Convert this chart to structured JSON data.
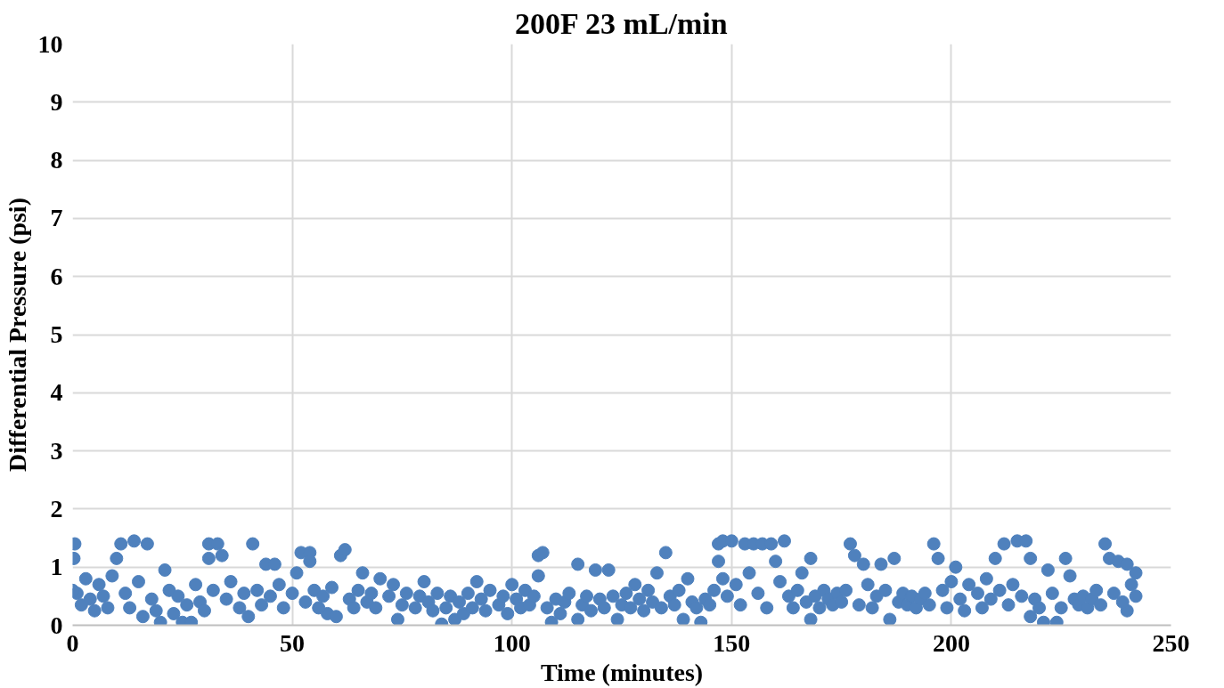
{
  "chart_data": {
    "type": "scatter",
    "title": "200F 23 mL/min",
    "xlabel": "Time (minutes)",
    "ylabel": "Differential Pressure (psi)",
    "xlim": [
      0,
      250
    ],
    "xticks": [
      0,
      50,
      100,
      150,
      200,
      250
    ],
    "ylim": [
      0,
      10
    ],
    "yticks": [
      0,
      1,
      2,
      3,
      4,
      5,
      6,
      7,
      8,
      9,
      10
    ],
    "grid": true,
    "marker": "circle",
    "series": [
      {
        "color": "#4f81bd",
        "x": [
          0.5,
          0.3,
          1,
          10,
          11,
          14,
          17,
          16,
          20,
          21,
          25,
          27,
          31,
          31,
          33,
          34,
          41,
          44,
          46,
          52,
          54,
          54,
          58,
          61,
          62,
          60,
          66,
          70,
          74,
          80,
          84,
          87,
          92,
          100,
          106,
          107,
          106,
          109,
          115,
          115,
          119,
          122,
          124,
          128,
          133,
          135,
          139,
          140,
          143,
          147,
          147,
          148,
          150,
          153,
          155,
          157,
          159,
          162,
          160,
          166,
          168,
          168,
          177,
          178,
          180,
          184,
          186,
          187,
          196,
          197,
          201,
          210,
          212,
          215,
          217,
          218,
          218,
          221,
          222,
          224,
          226,
          227,
          235,
          236,
          238,
          240,
          242,
          242,
          240,
          0,
          2,
          3,
          4,
          5,
          6,
          7,
          8,
          9,
          12,
          13,
          15,
          18,
          19,
          22,
          23,
          24,
          26,
          28,
          29,
          30,
          32,
          35,
          36,
          38,
          39,
          40,
          42,
          43,
          45,
          47,
          48,
          50,
          51,
          53,
          55,
          56,
          57,
          59,
          63,
          64,
          65,
          67,
          68,
          69,
          72,
          73,
          75,
          76,
          78,
          79,
          81,
          82,
          83,
          85,
          86,
          88,
          89,
          90,
          91,
          93,
          94,
          95,
          97,
          98,
          99,
          101,
          102,
          103,
          104,
          105,
          108,
          110,
          111,
          112,
          113,
          116,
          117,
          118,
          120,
          121,
          123,
          125,
          126,
          127,
          129,
          130,
          131,
          132,
          134,
          136,
          137,
          138,
          141,
          142,
          144,
          145,
          146,
          148,
          149,
          151,
          152,
          154,
          156,
          158,
          161,
          163,
          164,
          165,
          167,
          169,
          170,
          171,
          172,
          173,
          174,
          175,
          176,
          179,
          181,
          182,
          183,
          185,
          188,
          189,
          190,
          191,
          192,
          193,
          194,
          195,
          198,
          199,
          200,
          202,
          203,
          204,
          206,
          207,
          208,
          209,
          211,
          213,
          214,
          216,
          219,
          220,
          223,
          225,
          228,
          229,
          230,
          231,
          232,
          233,
          234,
          237,
          239,
          241
        ],
        "values": [
          1.4,
          1.15,
          0.55,
          1.15,
          1.4,
          1.45,
          1.4,
          0.15,
          0.05,
          0.95,
          0.05,
          0.05,
          1.4,
          1.15,
          1.4,
          1.2,
          1.4,
          1.05,
          1.05,
          1.25,
          1.25,
          1.1,
          0.2,
          1.2,
          1.3,
          0.15,
          0.9,
          0.8,
          0.1,
          0.75,
          0.02,
          0.1,
          0.75,
          0.7,
          1.2,
          1.25,
          0.85,
          0.05,
          1.05,
          0.1,
          0.95,
          0.95,
          0.1,
          0.7,
          0.9,
          1.25,
          0.1,
          0.8,
          0.05,
          1.4,
          1.1,
          1.45,
          1.45,
          1.4,
          1.4,
          1.4,
          1.4,
          1.45,
          1.1,
          0.9,
          1.15,
          0.1,
          1.4,
          1.2,
          1.05,
          1.05,
          0.1,
          1.15,
          1.4,
          1.15,
          1.0,
          1.15,
          1.4,
          1.45,
          1.45,
          1.15,
          0.15,
          0.05,
          0.95,
          0.05,
          1.15,
          0.85,
          1.4,
          1.15,
          1.1,
          1.05,
          0.9,
          0.5,
          0.25,
          0.6,
          0.35,
          0.8,
          0.45,
          0.25,
          0.7,
          0.5,
          0.3,
          0.85,
          0.55,
          0.3,
          0.75,
          0.45,
          0.25,
          0.6,
          0.2,
          0.5,
          0.35,
          0.7,
          0.4,
          0.25,
          0.6,
          0.45,
          0.75,
          0.3,
          0.55,
          0.15,
          0.6,
          0.35,
          0.5,
          0.7,
          0.3,
          0.55,
          0.9,
          0.4,
          0.6,
          0.3,
          0.5,
          0.65,
          0.45,
          0.3,
          0.6,
          0.4,
          0.55,
          0.3,
          0.5,
          0.7,
          0.35,
          0.55,
          0.3,
          0.5,
          0.4,
          0.25,
          0.55,
          0.3,
          0.5,
          0.4,
          0.2,
          0.55,
          0.3,
          0.45,
          0.25,
          0.6,
          0.35,
          0.5,
          0.2,
          0.45,
          0.3,
          0.6,
          0.35,
          0.5,
          0.3,
          0.45,
          0.2,
          0.4,
          0.55,
          0.35,
          0.5,
          0.25,
          0.45,
          0.3,
          0.5,
          0.35,
          0.55,
          0.3,
          0.45,
          0.25,
          0.6,
          0.4,
          0.3,
          0.5,
          0.35,
          0.6,
          0.4,
          0.3,
          0.45,
          0.35,
          0.6,
          0.8,
          0.5,
          0.7,
          0.35,
          0.9,
          0.55,
          0.3,
          0.75,
          0.5,
          0.3,
          0.6,
          0.4,
          0.5,
          0.3,
          0.6,
          0.45,
          0.35,
          0.55,
          0.4,
          0.6,
          0.35,
          0.7,
          0.3,
          0.5,
          0.6,
          0.4,
          0.55,
          0.35,
          0.5,
          0.3,
          0.45,
          0.55,
          0.35,
          0.6,
          0.3,
          0.75,
          0.45,
          0.25,
          0.7,
          0.55,
          0.3,
          0.8,
          0.45,
          0.6,
          0.35,
          0.7,
          0.5,
          0.45,
          0.3,
          0.55,
          0.3,
          0.45,
          0.35,
          0.5,
          0.3,
          0.45,
          0.6,
          0.35,
          0.55,
          0.4,
          0.7
        ]
      }
    ]
  }
}
